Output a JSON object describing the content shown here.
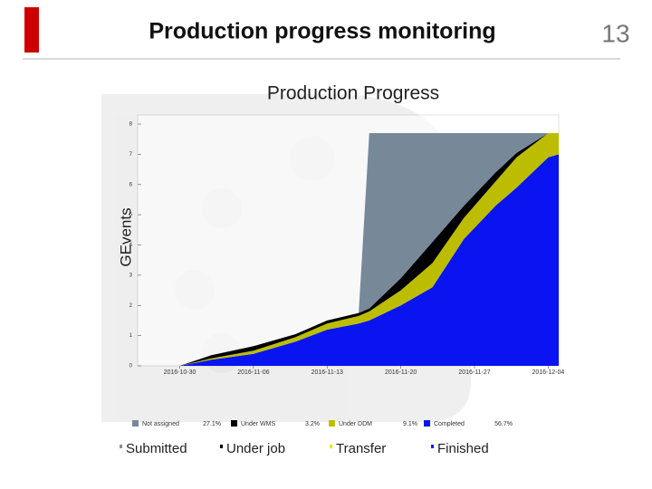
{
  "slide": {
    "title": "Production progress monitoring",
    "page_number": "13",
    "labels": [
      {
        "text": "Submitted",
        "color": "#8c8c8c"
      },
      {
        "text": "Under job",
        "color": "#000000"
      },
      {
        "text": "Transfer",
        "color": "#e6e600"
      },
      {
        "text": "Finished",
        "color": "#1a1aff"
      }
    ]
  },
  "chart_data": {
    "type": "stacked_area",
    "title": "Production Progress",
    "y_label": "GEvents",
    "x": [
      "2016-10-30",
      "2016-11-02",
      "2016-11-06",
      "2016-11-10",
      "2016-11-13",
      "2016-11-16",
      "2016-11-17",
      "2016-11-20",
      "2016-11-23",
      "2016-11-26",
      "2016-11-29",
      "2016-12-01",
      "2016-12-04",
      "2016-12-05"
    ],
    "xlim": [
      "2016-10-26",
      "2016-12-05"
    ],
    "xticks": [
      "2016-10-30",
      "2016-11-06",
      "2016-11-13",
      "2016-11-20",
      "2016-11-27",
      "2016-12-04"
    ],
    "ylim": [
      0,
      8.3
    ],
    "yticks": [
      0,
      1,
      2,
      3,
      4,
      5,
      6,
      7,
      8
    ],
    "series": [
      {
        "name": "Completed",
        "share": "56.7%",
        "color": "#0a14f0",
        "values": [
          0,
          0.2,
          0.4,
          0.8,
          1.2,
          1.4,
          1.5,
          2.0,
          2.6,
          4.2,
          5.3,
          5.9,
          6.9,
          7.0
        ]
      },
      {
        "name": "Under DDM",
        "share": "9.1%",
        "color": "#bdbd00",
        "values": [
          0,
          0.05,
          0.1,
          0.15,
          0.2,
          0.25,
          0.3,
          0.5,
          0.8,
          0.7,
          0.8,
          1.0,
          0.8,
          0.7
        ]
      },
      {
        "name": "Under WMS",
        "share": "3.2%",
        "color": "#000000",
        "values": [
          0,
          0.1,
          0.15,
          0.1,
          0.1,
          0.1,
          0.1,
          0.4,
          0.7,
          0.4,
          0.3,
          0.15,
          0,
          0
        ]
      },
      {
        "name": "Not assigned",
        "share": "27.1%",
        "color": "#778899",
        "values": [
          0,
          0,
          0,
          0,
          0,
          0,
          5.8,
          4.8,
          3.6,
          2.4,
          1.3,
          0.65,
          0,
          0
        ]
      }
    ]
  }
}
